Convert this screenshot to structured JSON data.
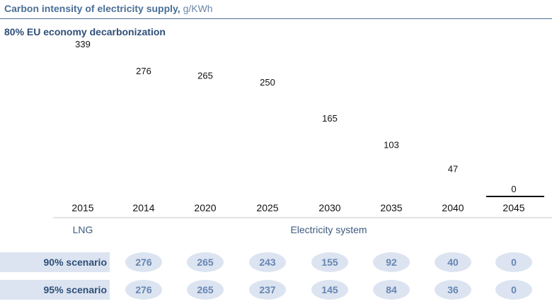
{
  "header": {
    "title": "Carbon intensity of electricity supply,",
    "unit": "g/KWh"
  },
  "subtitle": "80% EU economy decarbonization",
  "chart_data": {
    "type": "bar",
    "categories": [
      "2015",
      "2014",
      "2020",
      "2025",
      "2030",
      "2035",
      "2040",
      "2045"
    ],
    "series": [
      {
        "values": [
          339,
          276,
          265,
          250,
          165,
          103,
          47,
          0
        ]
      }
    ],
    "groups": [
      {
        "label": "LNG",
        "categories": [
          "2015"
        ]
      },
      {
        "label": "Electricity system",
        "categories": [
          "2014",
          "2020",
          "2025",
          "2030",
          "2035",
          "2040",
          "2045"
        ]
      }
    ],
    "bar_fill": "#ffffff",
    "baseline_color": "#111111"
  },
  "scenarios": [
    {
      "label": "90% scenario",
      "values": [
        "276",
        "265",
        "243",
        "155",
        "92",
        "40",
        "0"
      ]
    },
    {
      "label": "95% scenario",
      "values": [
        "276",
        "265",
        "237",
        "145",
        "84",
        "36",
        "0"
      ]
    }
  ],
  "colors": {
    "title": "#4a6f97",
    "subtitle": "#2e4f78",
    "pill_bg": "#dce4f1",
    "pill_text": "#6686b2"
  }
}
